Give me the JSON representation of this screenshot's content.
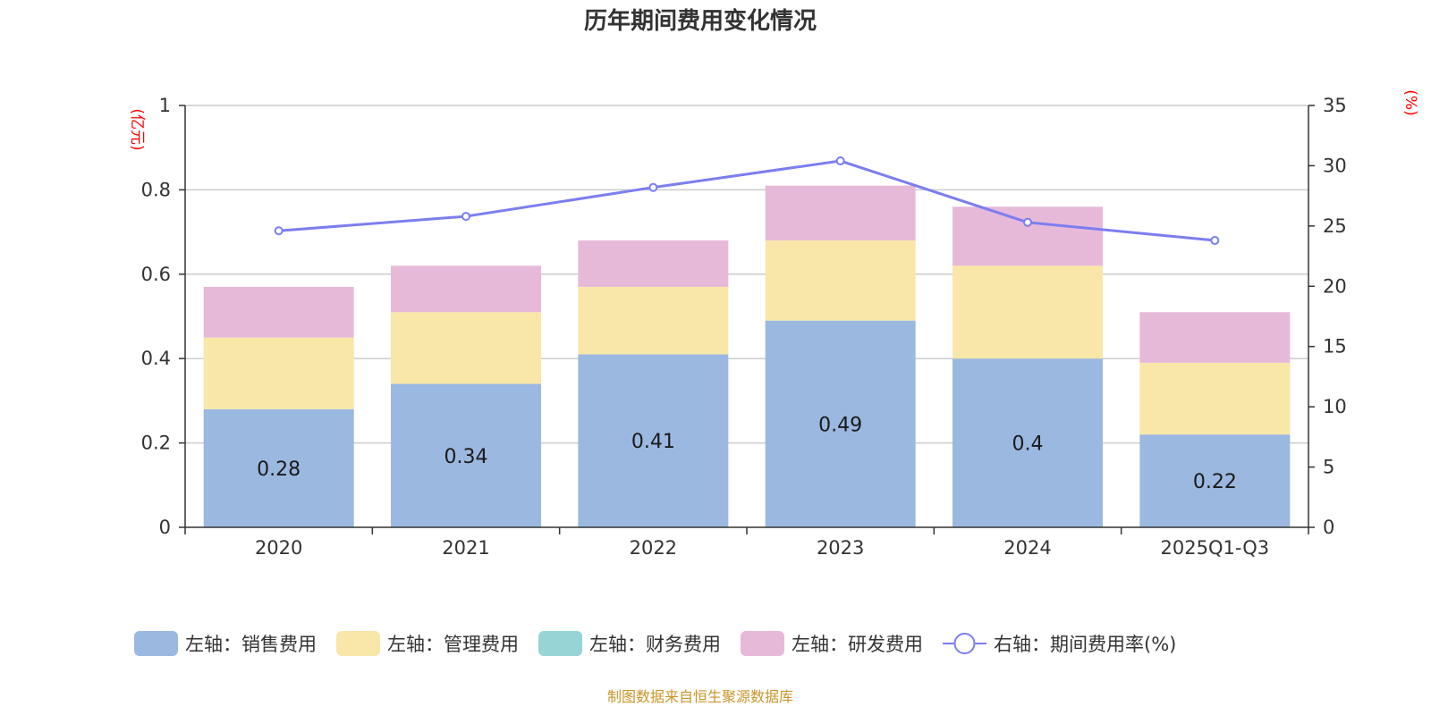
{
  "chart_data": {
    "type": "bar",
    "stacked": true,
    "title": "历年期间费用变化情况",
    "categories": [
      "2020",
      "2021",
      "2022",
      "2023",
      "2024",
      "2025Q1-Q3"
    ],
    "left_axis": {
      "unit": "(亿元)",
      "ylim": [
        0,
        1
      ],
      "ticks": [
        "0",
        "0.2",
        "0.4",
        "0.6",
        "0.8",
        "1"
      ],
      "tick_values": [
        0,
        0.2,
        0.4,
        0.6,
        0.8,
        1
      ]
    },
    "right_axis": {
      "unit": "(%)",
      "ylim": [
        0,
        35
      ],
      "ticks": [
        "0",
        "5",
        "10",
        "15",
        "20",
        "25",
        "30",
        "35"
      ],
      "tick_values": [
        0,
        5,
        10,
        15,
        20,
        25,
        30,
        35
      ]
    },
    "series": [
      {
        "name": "左轴：销售费用",
        "axis": "left",
        "kind": "bar",
        "color": "#9bb8e1",
        "values": [
          0.28,
          0.34,
          0.41,
          0.49,
          0.4,
          0.22
        ],
        "labels": [
          "0.28",
          "0.34",
          "0.41",
          "0.49",
          "0.4",
          "0.22"
        ]
      },
      {
        "name": "左轴：管理费用",
        "axis": "left",
        "kind": "bar",
        "color": "#f8e7a9",
        "values": [
          0.17,
          0.17,
          0.16,
          0.19,
          0.22,
          0.17
        ]
      },
      {
        "name": "左轴：财务费用",
        "axis": "left",
        "kind": "bar",
        "color": "#96d4d5",
        "values": [
          0,
          0,
          0,
          0,
          0,
          0
        ]
      },
      {
        "name": "左轴：研发费用",
        "axis": "left",
        "kind": "bar",
        "color": "#e7b9d9",
        "values": [
          0.12,
          0.11,
          0.11,
          0.13,
          0.14,
          0.12
        ]
      },
      {
        "name": "右轴：期间费用率(%)",
        "axis": "right",
        "kind": "line",
        "color": "#7b7ef0",
        "values": [
          24.6,
          25.8,
          28.2,
          30.4,
          25.3,
          23.8
        ]
      }
    ],
    "legend_position": "bottom",
    "grid": true
  },
  "source_note": "制图数据来自恒生聚源数据库"
}
